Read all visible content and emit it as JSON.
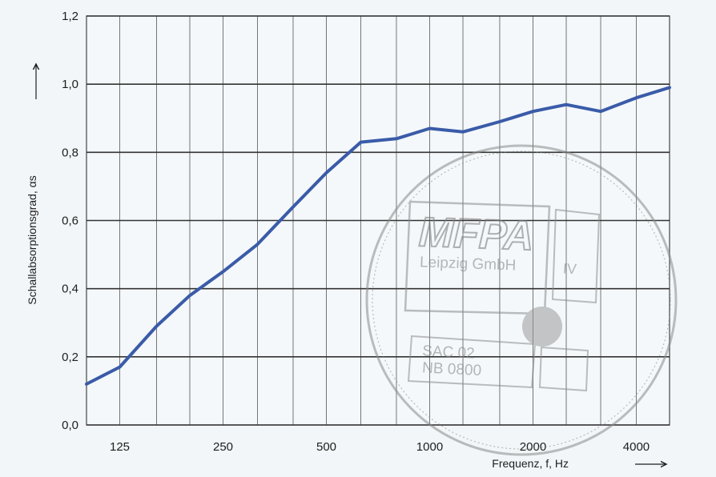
{
  "chart_data": {
    "type": "line",
    "xlabel": "Frequenz, f, Hz",
    "ylabel": "Schallabsorptionsgrad, αs",
    "x_scale": "log",
    "xlim": [
      100,
      5000
    ],
    "ylim": [
      0,
      1.2
    ],
    "x_ticks": [
      125,
      250,
      500,
      1000,
      2000,
      4000
    ],
    "x_tick_labels": [
      "125",
      "250",
      "500",
      "1000",
      "2000",
      "4000"
    ],
    "y_ticks": [
      0,
      0.2,
      0.4,
      0.6,
      0.8,
      1.0,
      1.2
    ],
    "y_tick_labels": [
      "0,0",
      "0,2",
      "0,4",
      "0,6",
      "0,8",
      "1,0",
      "1,2"
    ],
    "grid": true,
    "x": [
      100,
      125,
      160,
      200,
      250,
      315,
      400,
      500,
      630,
      800,
      1000,
      1250,
      1600,
      2000,
      2500,
      3150,
      4000,
      5000
    ],
    "series": [
      {
        "values": [
          0.12,
          0.17,
          0.29,
          0.38,
          0.45,
          0.53,
          0.64,
          0.74,
          0.83,
          0.84,
          0.87,
          0.86,
          0.89,
          0.92,
          0.94,
          0.92,
          0.96,
          0.99
        ],
        "color": "#3a5ba8"
      }
    ]
  },
  "stamp": {
    "logo_text": "MFPA",
    "org_text": "Leipzig GmbH",
    "roman": "IV",
    "line1": "SAC 02",
    "line2": "NB 0800"
  }
}
